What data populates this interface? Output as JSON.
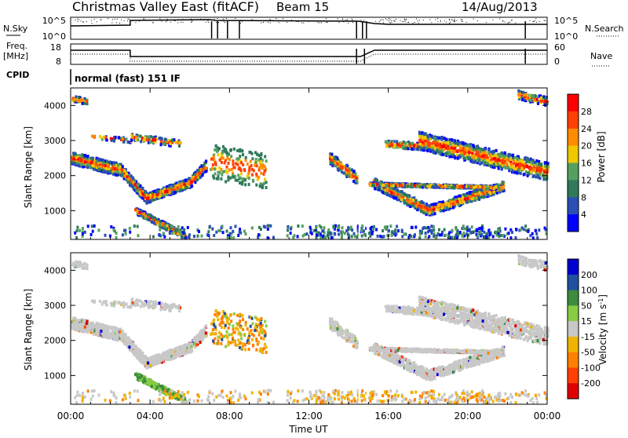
{
  "header": {
    "station": "Christmas Valley East (fitACF)",
    "beam": "Beam 15",
    "date": "14/Aug/2013"
  },
  "strips": {
    "nsky_label": "N.Sky",
    "nsky_ticks": [
      "10^5",
      "10^0"
    ],
    "nsearch_label": "N.Search",
    "nsearch_ticks": [
      "10^5",
      "10^0"
    ],
    "freq_label_1": "Freq.",
    "freq_label_2": "[MHz]",
    "freq_ticks": [
      "18",
      "8"
    ],
    "nave_label": "Nave",
    "nave_ticks": [
      "60",
      "0"
    ],
    "cpid_label": "CPID",
    "cpid_text": "normal (fast) 151 IF"
  },
  "chart_data": [
    {
      "type": "heatmap",
      "quantity": "Power",
      "ylabel": "Slant Range [km]",
      "ylim": [
        180,
        4500
      ],
      "yticks": [
        "4000",
        "3000",
        "2000",
        "1000"
      ],
      "colorbar_label": "Power [dB]",
      "colorbar_ticks": [
        "28",
        "24",
        "20",
        "16",
        "12",
        "8",
        "4"
      ],
      "colors": [
        "#0000ff",
        "#2a4fb5",
        "#2f7a5a",
        "#55a060",
        "#f0c800",
        "#ff8c00",
        "#ff4000",
        "#ff0000"
      ]
    },
    {
      "type": "heatmap",
      "quantity": "Velocity",
      "ylabel": "Slant Range [km]",
      "ylim": [
        180,
        4500
      ],
      "yticks": [
        "4000",
        "3000",
        "2000",
        "1000"
      ],
      "colorbar_label": "Velocity [m s^-1]",
      "colorbar_ticks": [
        "200",
        "100",
        "50",
        "15",
        "-15",
        "-50",
        "-100",
        "-200"
      ],
      "colors": [
        "#0000d0",
        "#2050a0",
        "#3c8c3c",
        "#88cc44",
        "#c8c8c8",
        "#f0b400",
        "#ff8000",
        "#ff4000",
        "#e00000"
      ],
      "xlabel": "Time UT",
      "xticks": [
        "00:00",
        "04:00",
        "08:00",
        "12:00",
        "16:00",
        "20:00",
        "00:00"
      ]
    }
  ]
}
